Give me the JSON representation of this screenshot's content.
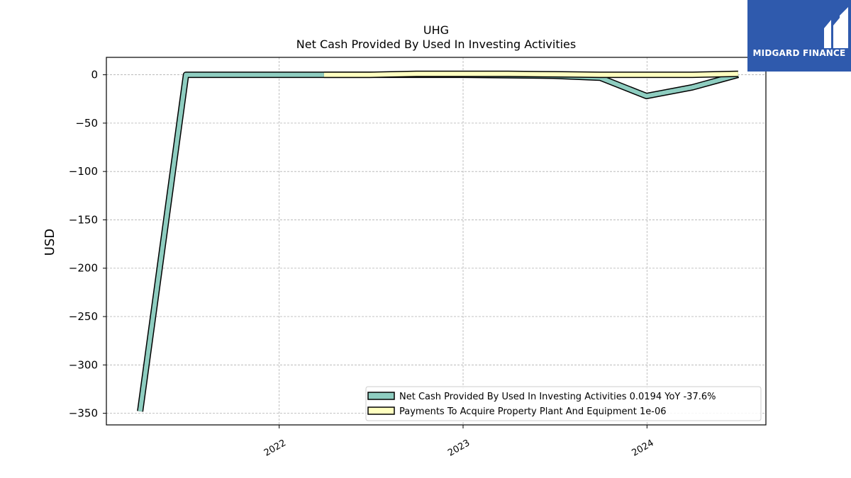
{
  "brand": {
    "name": "MIDGARD FINANCE",
    "background": "#2f5aad"
  },
  "chart_data": {
    "type": "area",
    "title": "UHG",
    "subtitle": "Net Cash Provided By Used In Investing Activities",
    "xlabel": "",
    "ylabel": "USD",
    "xlim": [
      "2021-01-23",
      "2024-08-24"
    ],
    "ylim": [
      -362,
      18
    ],
    "yticks": [
      0,
      -50,
      -100,
      -150,
      -200,
      -250,
      -300,
      -350
    ],
    "xticks": [
      {
        "date": "2022-01-01",
        "label": "2022"
      },
      {
        "date": "2023-01-01",
        "label": "2023"
      },
      {
        "date": "2024-01-01",
        "label": "2024"
      }
    ],
    "grid": true,
    "legend_position": "lower-right",
    "series": [
      {
        "name": "Net Cash Provided By Used In Investing Activities",
        "legend_label": "Net Cash Provided By Used In Investing Activities  0.0194 YoY -37.6%",
        "color": "#8ecdc0",
        "points": [
          [
            "2021-03-31",
            -348
          ],
          [
            "2021-06-30",
            0
          ],
          [
            "2021-09-30",
            0
          ],
          [
            "2021-12-31",
            0
          ],
          [
            "2022-03-31",
            0
          ],
          [
            "2022-06-30",
            0
          ],
          [
            "2022-09-30",
            0
          ],
          [
            "2022-12-31",
            0
          ],
          [
            "2023-03-31",
            -0.5
          ],
          [
            "2023-06-30",
            -1
          ],
          [
            "2023-09-30",
            -3
          ],
          [
            "2023-12-31",
            -22
          ],
          [
            "2024-03-31",
            -13
          ],
          [
            "2024-06-30",
            0
          ]
        ]
      },
      {
        "name": "Payments To Acquire Property Plant And Equipment",
        "legend_label": "Payments To Acquire Property Plant And Equipment  1e-06",
        "color": "#ffffc0",
        "points": [
          [
            "2022-03-31",
            0
          ],
          [
            "2022-06-30",
            0
          ],
          [
            "2022-09-30",
            1
          ],
          [
            "2022-12-31",
            1
          ],
          [
            "2023-03-31",
            1
          ],
          [
            "2023-06-30",
            0.5
          ],
          [
            "2023-09-30",
            0
          ],
          [
            "2023-12-31",
            0
          ],
          [
            "2024-03-31",
            0
          ],
          [
            "2024-06-30",
            1
          ]
        ]
      }
    ]
  }
}
